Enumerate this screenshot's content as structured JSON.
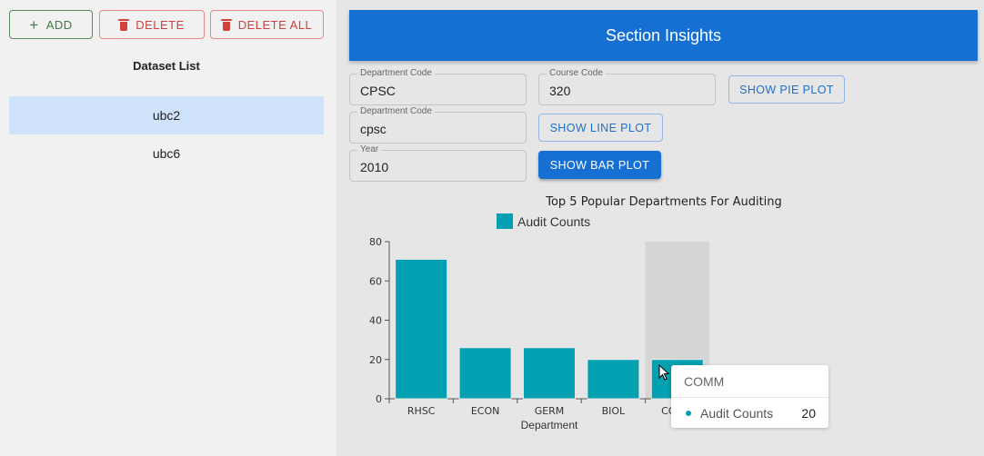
{
  "left": {
    "add_label": "ADD",
    "delete_label": "DELETE",
    "delete_all_label": "DELETE ALL",
    "dataset_title": "Dataset List",
    "datasets": [
      "ubc2",
      "ubc6"
    ],
    "selected_dataset": "ubc2"
  },
  "header": {
    "title": "Section Insights"
  },
  "form": {
    "dept1": {
      "label": "Department Code",
      "value": "CPSC"
    },
    "course": {
      "label": "Course Code",
      "value": "320"
    },
    "dept2": {
      "label": "Department Code",
      "value": "cpsc"
    },
    "year": {
      "label": "Year",
      "value": "2010"
    },
    "pie_label": "SHOW PIE PLOT",
    "line_label": "SHOW LINE PLOT",
    "bar_label": "SHOW BAR PLOT"
  },
  "chart_data": {
    "type": "bar",
    "title": "Top 5 Popular Departments For Auditing",
    "xlabel": "Department",
    "ylabel": "",
    "categories": [
      "RHSC",
      "ECON",
      "GERM",
      "BIOL",
      "COMM"
    ],
    "series": [
      {
        "name": "Audit Counts",
        "values": [
          71,
          26,
          26,
          20,
          20
        ]
      }
    ],
    "ylim": [
      0,
      80
    ],
    "yticks": [
      0,
      20,
      40,
      60,
      80
    ],
    "legend": "top",
    "colors": {
      "bar": "#02a0b0",
      "hover": "#d6d6d6"
    },
    "hovered_category": "COMM"
  },
  "tooltip": {
    "title": "COMM",
    "series_name": "Audit Counts",
    "value": "20"
  }
}
